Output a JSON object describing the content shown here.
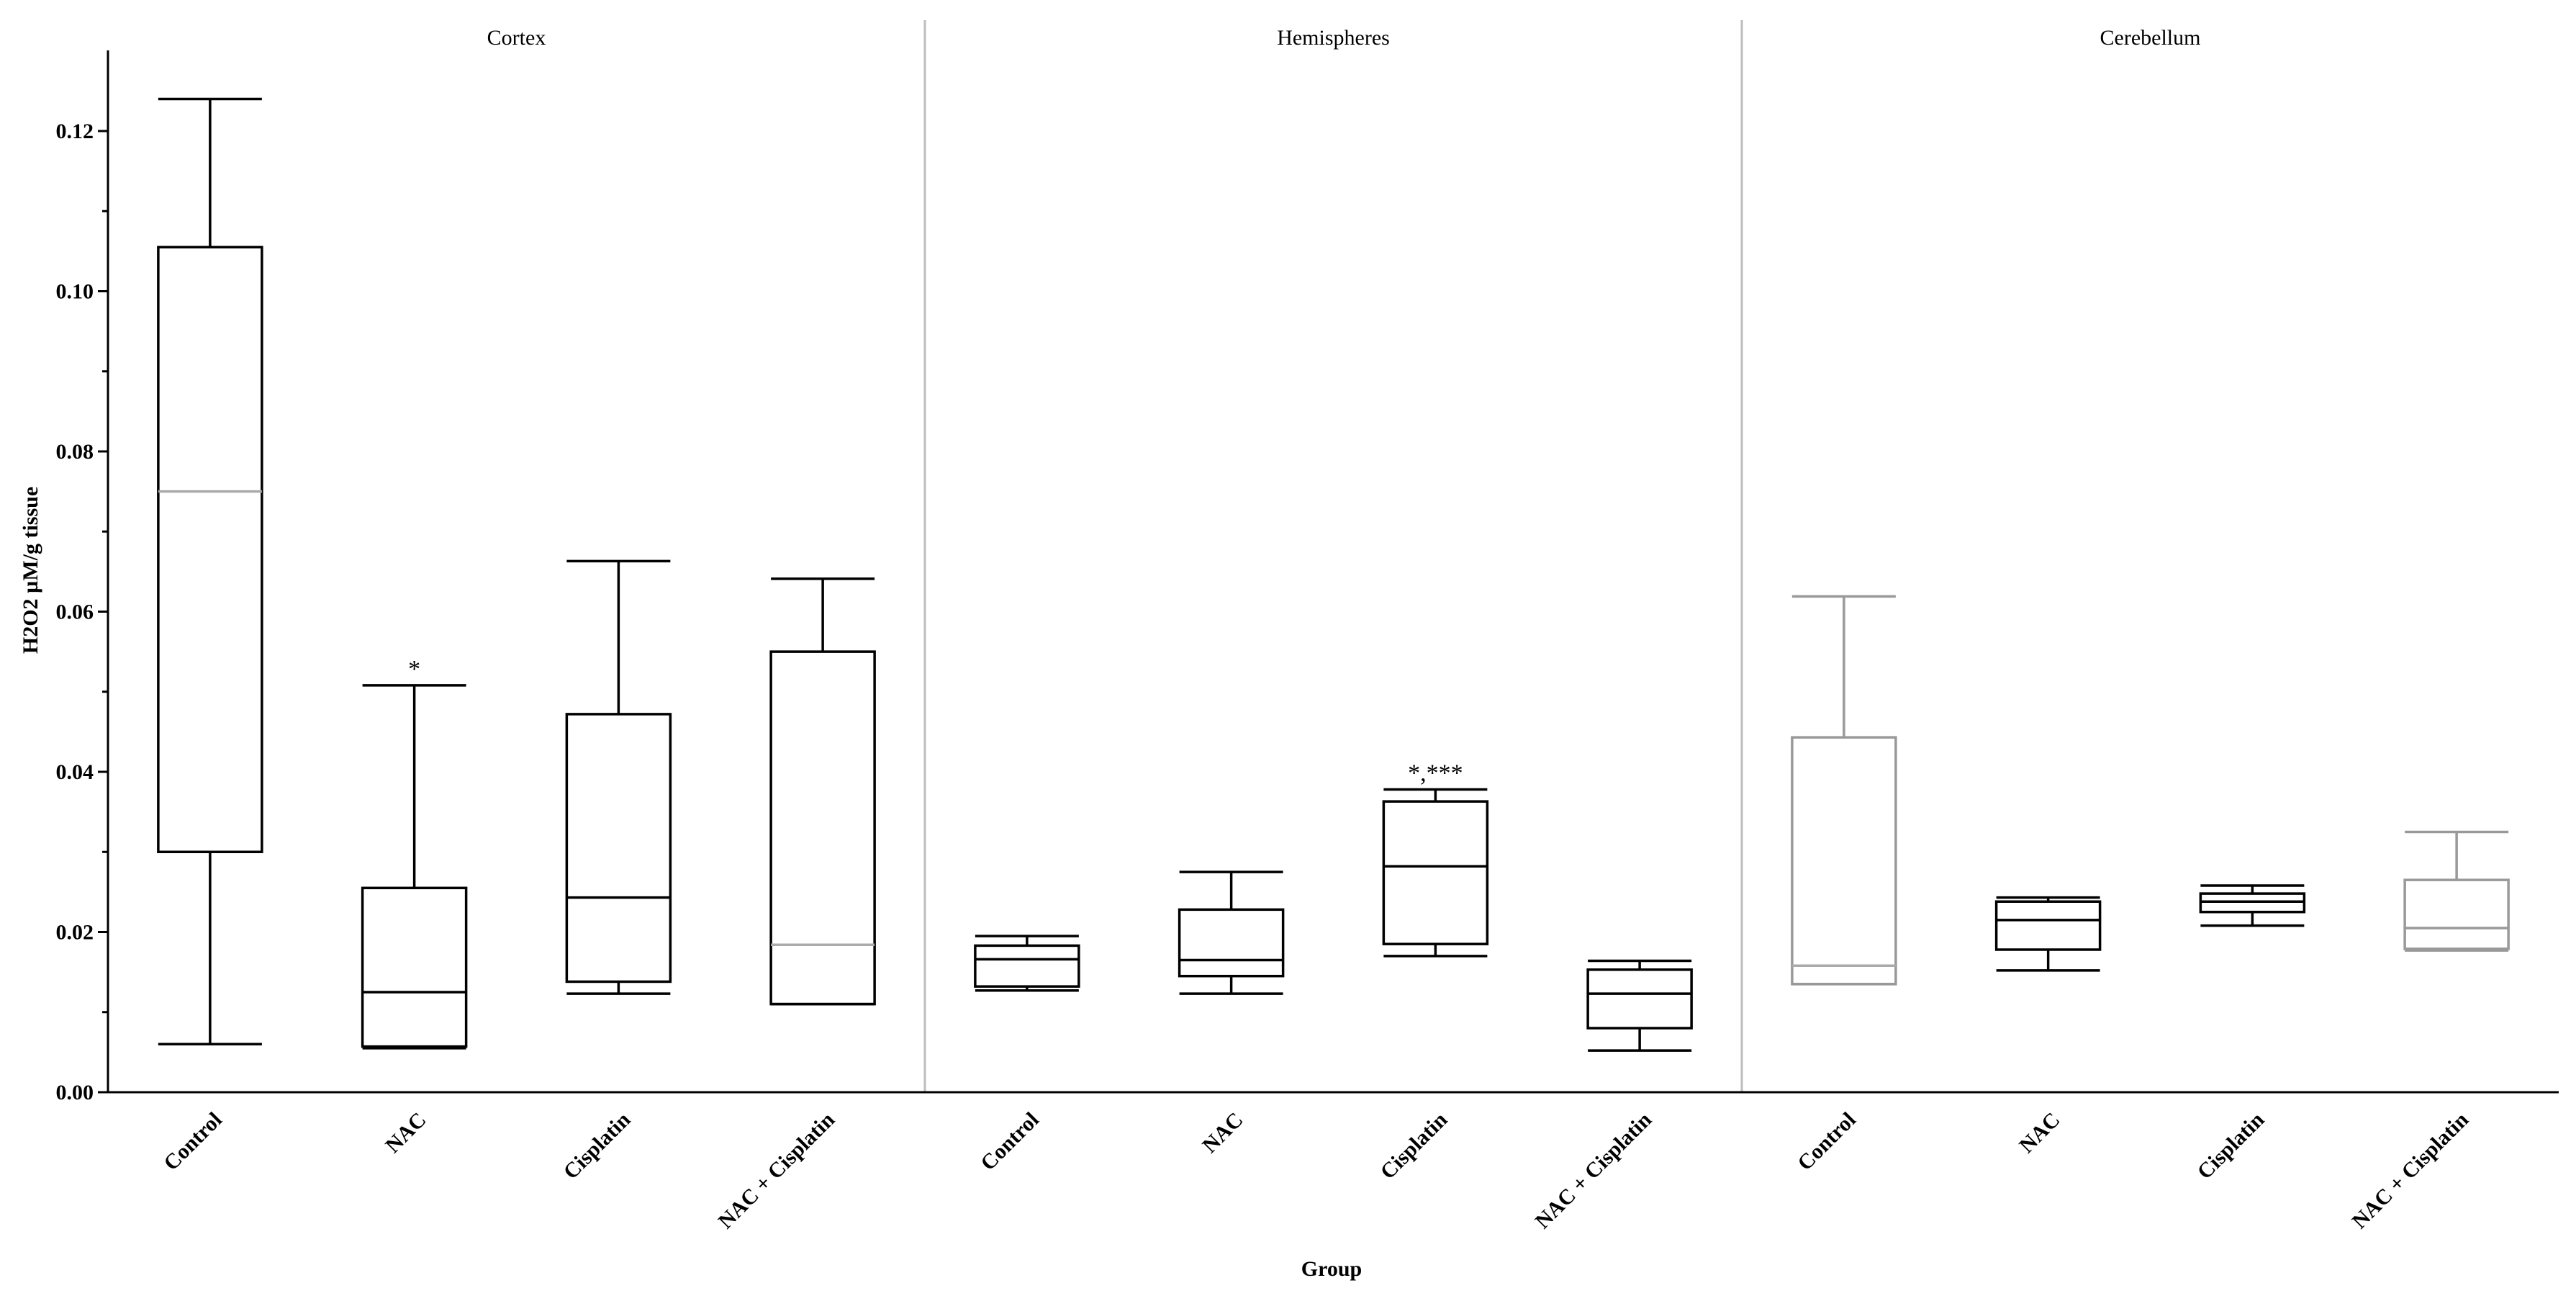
{
  "chart_data": {
    "type": "box",
    "ylabel": "H2O2 µM/g tissue",
    "xlabel": "Group",
    "ylim": [
      0,
      0.13
    ],
    "yticks": [
      "0.00",
      "0.02",
      "0.04",
      "0.06",
      "0.08",
      "0.10",
      "0.12"
    ],
    "grid": false,
    "categories": [
      "Control",
      "NAC",
      "Cisplatin",
      "NAC + Cisplatin"
    ],
    "panels": [
      {
        "title": "Cortex",
        "boxes": [
          {
            "group": "Control",
            "min": 0.006,
            "q1": 0.03,
            "median": 0.075,
            "q3": 0.1055,
            "max": 0.124,
            "color": "#000000",
            "median_color": "#aaaaaa",
            "annotation": ""
          },
          {
            "group": "NAC",
            "min": 0.0055,
            "q1": 0.0057,
            "median": 0.0125,
            "q3": 0.0255,
            "max": 0.0508,
            "color": "#000000",
            "median_color": "#000000",
            "annotation": "*"
          },
          {
            "group": "Cisplatin",
            "min": 0.0123,
            "q1": 0.0138,
            "median": 0.0243,
            "q3": 0.0472,
            "max": 0.0663,
            "color": "#000000",
            "median_color": "#000000",
            "annotation": ""
          },
          {
            "group": "NAC + Cisplatin",
            "min": 0.011,
            "q1": 0.011,
            "median": 0.0184,
            "q3": 0.055,
            "max": 0.0641,
            "color": "#000000",
            "median_color": "#aaaaaa",
            "annotation": ""
          }
        ]
      },
      {
        "title": "Hemispheres",
        "boxes": [
          {
            "group": "Control",
            "min": 0.0127,
            "q1": 0.0132,
            "median": 0.0166,
            "q3": 0.0183,
            "max": 0.0195,
            "color": "#000000",
            "median_color": "#000000",
            "annotation": ""
          },
          {
            "group": "NAC",
            "min": 0.0123,
            "q1": 0.0145,
            "median": 0.0165,
            "q3": 0.0228,
            "max": 0.0275,
            "color": "#000000",
            "median_color": "#000000",
            "annotation": ""
          },
          {
            "group": "Cisplatin",
            "min": 0.017,
            "q1": 0.0185,
            "median": 0.0282,
            "q3": 0.0363,
            "max": 0.0378,
            "color": "#000000",
            "median_color": "#000000",
            "annotation": "*,***"
          },
          {
            "group": "NAC + Cisplatin",
            "min": 0.0052,
            "q1": 0.008,
            "median": 0.0123,
            "q3": 0.0153,
            "max": 0.0164,
            "color": "#000000",
            "median_color": "#000000",
            "annotation": ""
          }
        ]
      },
      {
        "title": "Cerebellum",
        "boxes": [
          {
            "group": "Control",
            "min": 0.0135,
            "q1": 0.0135,
            "median": 0.0158,
            "q3": 0.0443,
            "max": 0.0619,
            "color": "#999999",
            "median_color": "#aaaaaa",
            "annotation": ""
          },
          {
            "group": "NAC",
            "min": 0.0152,
            "q1": 0.0178,
            "median": 0.0215,
            "q3": 0.0238,
            "max": 0.0243,
            "color": "#000000",
            "median_color": "#000000",
            "annotation": ""
          },
          {
            "group": "Cisplatin",
            "min": 0.0208,
            "q1": 0.0225,
            "median": 0.0238,
            "q3": 0.0248,
            "max": 0.0258,
            "color": "#000000",
            "median_color": "#000000",
            "annotation": ""
          },
          {
            "group": "NAC + Cisplatin",
            "min": 0.0177,
            "q1": 0.0179,
            "median": 0.0205,
            "q3": 0.0265,
            "max": 0.0325,
            "color": "#999999",
            "median_color": "#999999",
            "annotation": ""
          }
        ]
      }
    ]
  }
}
